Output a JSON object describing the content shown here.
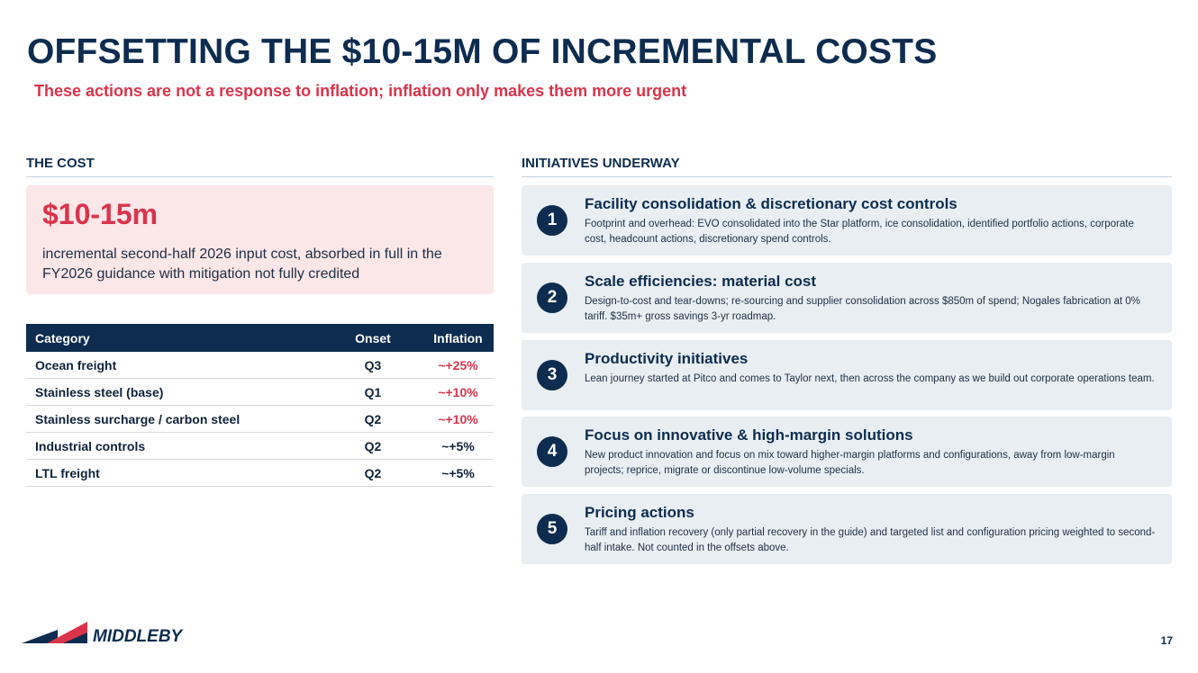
{
  "slide": {
    "title": "OFFSETTING THE $10-15M OF INCREMENTAL COSTS",
    "subtitle": "These actions are not a response to inflation; inflation only makes them more urgent",
    "page_number": "17"
  },
  "cost": {
    "section_label": "THE COST",
    "amount": "$10-15m",
    "description": "incremental second-half 2026 input cost, absorbed in full in the FY2026 guidance with mitigation not fully credited",
    "table": {
      "headers": [
        "Category",
        "Onset",
        "Inflation"
      ],
      "rows": [
        {
          "category": "Ocean freight",
          "onset": "Q3",
          "inflation": "~+25%"
        },
        {
          "category": "Stainless steel (base)",
          "onset": "Q1",
          "inflation": "~+10%"
        },
        {
          "category": "Stainless surcharge / carbon steel",
          "onset": "Q2",
          "inflation": "~+10%"
        },
        {
          "category": "Industrial controls",
          "onset": "Q2",
          "inflation": "~+5%"
        },
        {
          "category": "LTL freight",
          "onset": "Q2",
          "inflation": "~+5%"
        }
      ]
    }
  },
  "initiatives": {
    "section_label": "INITIATIVES UNDERWAY",
    "items": [
      {
        "number": "1",
        "title": "Facility consolidation & discretionary cost controls",
        "description": "Footprint and overhead: EVO consolidated into the Star platform, ice consolidation, identified portfolio actions, corporate cost, headcount actions, discretionary spend controls."
      },
      {
        "number": "2",
        "title": "Scale efficiencies: material cost",
        "description": "Design-to-cost and tear-downs; re-sourcing and supplier consolidation across $850m of spend; Nogales fabrication at 0% tariff. $35m+ gross savings 3-yr roadmap."
      },
      {
        "number": "3",
        "title": "Productivity initiatives",
        "description": "Lean journey started at Pitco and comes to Taylor next, then across the company as we build out corporate operations team."
      },
      {
        "number": "4",
        "title": "Focus on innovative & high-margin solutions",
        "description": "New product innovation and focus on mix toward higher-margin platforms and configurations, away from low-margin projects; reprice, migrate or discontinue low-volume specials."
      },
      {
        "number": "5",
        "title": "Pricing actions",
        "description": "Tariff and inflation recovery (only partial recovery in the guide) and targeted list and configuration pricing weighted to second-half intake. Not counted in the offsets above."
      }
    ]
  },
  "brand": {
    "logo_text": "MIDDLEBY",
    "navy": "#0d2c4f",
    "red": "#d9344b",
    "card_bg": "#e8eef2",
    "cost_bg": "#fbe6e8"
  }
}
